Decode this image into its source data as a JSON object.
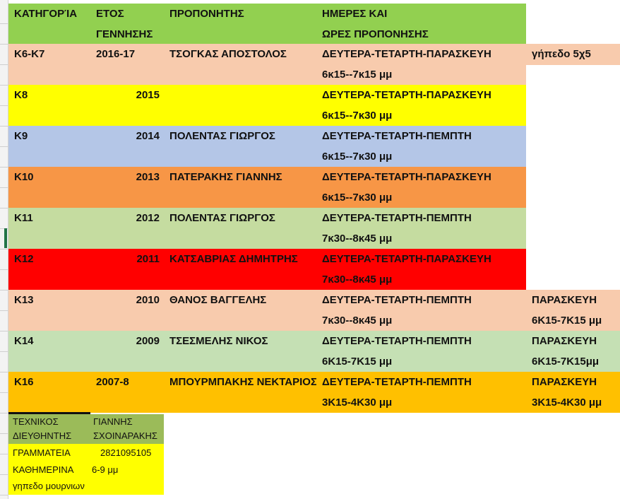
{
  "colors": {
    "header": "#92d050",
    "peach": "#f8cbad",
    "yellow": "#ffff00",
    "blue": "#b4c6e7",
    "orange": "#f79646",
    "lightgreen": "#c5dca0",
    "red": "#ff0000",
    "green2": "#c5e0b4",
    "amber": "#ffc000",
    "olive": "#9bbb59"
  },
  "header": {
    "category": "ΚΑΤΗΓΟΡΊΑ",
    "year_line1": "ΕΤΟΣ",
    "year_line2": "ΓΕΝΝΗΣΗΣ",
    "coach": "ΠΡΟΠΟΝΗΤΗΣ",
    "schedule_line1": "ΗΜΕΡΕΣ ΚΑΙ",
    "schedule_line2": "ΩΡΕΣ ΠΡΟΠΟΝΗΣΗΣ"
  },
  "rows": [
    {
      "category": "Κ6-Κ7",
      "year": "2016-17",
      "coach": "ΤΣΟΓΚΑΣ ΑΠΟΣΤΟΛΟΣ",
      "days": "ΔΕΥΤΕΡΑ-ΤΕΤΑΡΤΗ-ΠΑΡΑΣΚΕΥΗ",
      "hours": "6κ15--7κ15 μμ",
      "extra1": "γήπεδο 5χ5",
      "extra2": "",
      "color": "#f8cbad",
      "extra_color": "#f8cbad"
    },
    {
      "category": "Κ8",
      "year": "2015",
      "coach": "",
      "days": "ΔΕΥΤΕΡΑ-ΤΕΤΑΡΤΗ-ΠΑΡΑΣΚΕΥΗ",
      "hours": "6κ15--7κ30 μμ",
      "extra1": "",
      "extra2": "",
      "color": "#ffff00",
      "extra_color": ""
    },
    {
      "category": "Κ9",
      "year": "2014",
      "coach": "ΠΟΛΕΝΤΑΣ ΓΙΩΡΓΟΣ",
      "days": "ΔΕΥΤΕΡΑ-ΤΕΤΑΡΤΗ-ΠΕΜΠΤΗ",
      "hours": "6κ15--7κ30 μμ",
      "extra1": "",
      "extra2": "",
      "color": "#b4c6e7",
      "extra_color": ""
    },
    {
      "category": "Κ10",
      "year": "2013",
      "coach": "ΠΑΤΕΡΑΚΗΣ ΓΙΑΝΝΗΣ",
      "days": "ΔΕΥΤΕΡΑ-ΤΕΤΑΡΤΗ-ΠΑΡΑΣΚΕΥΗ",
      "hours": "6κ15--7κ30 μμ",
      "extra1": "",
      "extra2": "",
      "color": "#f79646",
      "extra_color": ""
    },
    {
      "category": "Κ11",
      "year": "2012",
      "coach": "ΠΟΛΕΝΤΑΣ ΓΙΩΡΓΟΣ",
      "days": "ΔΕΥΤΕΡΑ-ΤΕΤΑΡΤΗ-ΠΕΜΠΤΗ",
      "hours": "7κ30--8κ45 μμ",
      "extra1": "",
      "extra2": "",
      "color": "#c5dca0",
      "extra_color": ""
    },
    {
      "category": "Κ12",
      "year": "2011",
      "coach": "ΚΑΤΣΑΒΡΙΑΣ ΔΗΜΗΤΡΗΣ",
      "days": "ΔΕΥΤΕΡΑ-ΤΕΤΑΡΤΗ-ΠΑΡΑΣΚΕΥΗ",
      "hours": "7κ30--8κ45 μμ",
      "extra1": "",
      "extra2": "",
      "color": "#ff0000",
      "extra_color": ""
    },
    {
      "category": "Κ13",
      "year": "2010",
      "coach": "ΘΑΝΟΣ ΒΑΓΓΕΛΗΣ",
      "days": "ΔΕΥΤΕΡΑ-ΤΕΤΑΡΤΗ-ΠΕΜΠΤΗ",
      "hours": "7κ30--8κ45 μμ",
      "extra1": "ΠΑΡΑΣΚΕΥΗ",
      "extra2": "6Κ15-7Κ15 μμ",
      "color": "#f8cbad",
      "extra_color": "#f8cbad"
    },
    {
      "category": "Κ14",
      "year": "2009",
      "coach": "ΤΣΕΣΜΕΛΗΣ ΝΙΚΟΣ",
      "days": "ΔΕΥΤΕΡΑ-ΤΕΤΑΡΤΗ-ΠΕΜΠΤΗ",
      "hours": "6Κ15-7Κ15 μμ",
      "extra1": "ΠΑΡΑΣΚΕΥΗ",
      "extra2": "6Κ15-7Κ15μμ",
      "color": "#c5e0b4",
      "extra_color": "#c5e0b4"
    },
    {
      "category": "Κ16",
      "year": "2007-8",
      "coach": "ΜΠΟΥΡΜΠΑΚΗΣ ΝΕΚΤΑΡΙΟΣ",
      "days": "ΔΕΥΤΕΡΑ-ΤΕΤΑΡΤΗ-ΠΕΜΠΤΗ",
      "hours": "3Κ15-4Κ30 μμ",
      "extra1": "ΠΑΡΑΣΚΕΥΗ",
      "extra2": "3Κ15-4Κ30 μμ",
      "color": "#ffc000",
      "extra_color": "#ffc000"
    }
  ],
  "footer": {
    "director_label1": "ΤΕΧΝΙΚΟΣ",
    "director_label2": "ΔΙΕΥΘΗΝΤΗΣ",
    "director_name1": "ΓΙΑΝΝΗΣ",
    "director_name2": "ΣΧΟΙΝΑΡΑΚΗΣ",
    "secretariat_label": "ΓΡΑΜΜΑΤΕΙΑ",
    "secretariat_phone": "2821095105",
    "daily_label": "ΚΑΘΗΜΕΡΙΝΑ",
    "daily_hours": "6-9 μμ",
    "venue": "γηπεδο μουρνιων"
  }
}
